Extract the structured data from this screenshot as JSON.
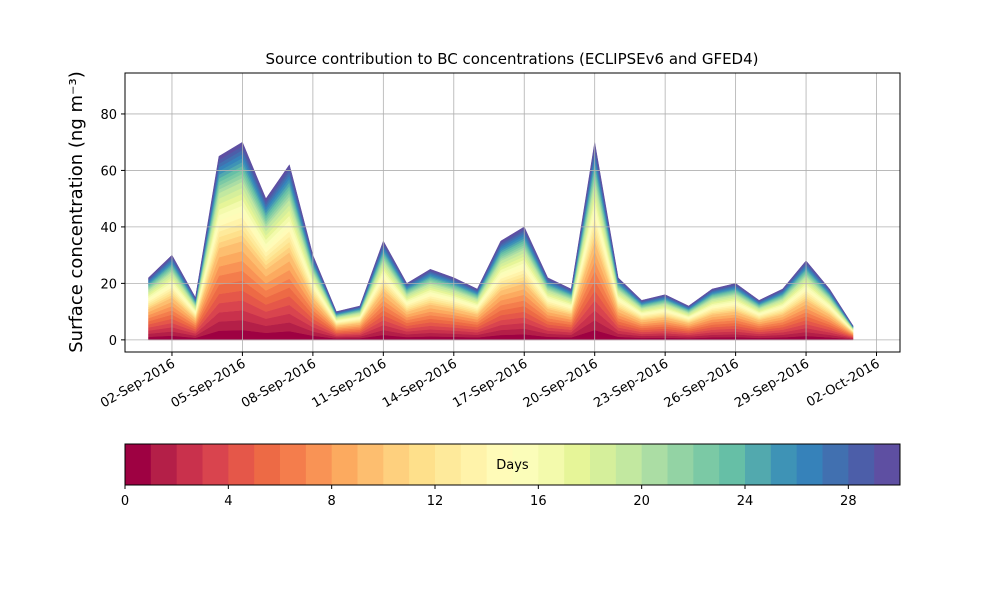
{
  "chart_data": {
    "type": "stackarea",
    "title": "Source contribution to BC concentrations (ECLIPSEv6 and GFED4)",
    "ylabel": "Surface concentration (ng m⁻³)",
    "x": [
      "2016-09-01",
      "2016-09-02",
      "2016-09-03",
      "2016-09-04",
      "2016-09-05",
      "2016-09-06",
      "2016-09-07",
      "2016-09-08",
      "2016-09-09",
      "2016-09-10",
      "2016-09-11",
      "2016-09-12",
      "2016-09-13",
      "2016-09-14",
      "2016-09-15",
      "2016-09-16",
      "2016-09-17",
      "2016-09-18",
      "2016-09-19",
      "2016-09-20",
      "2016-09-21",
      "2016-09-22",
      "2016-09-23",
      "2016-09-24",
      "2016-09-25",
      "2016-09-26",
      "2016-09-27",
      "2016-09-28",
      "2016-09-29",
      "2016-09-30",
      "2016-10-01"
    ],
    "xlim": [
      "2016-08-31",
      "2016-10-03"
    ],
    "xticks": [
      {
        "value": "2016-09-02",
        "label": "02-Sep-2016"
      },
      {
        "value": "2016-09-05",
        "label": "05-Sep-2016"
      },
      {
        "value": "2016-09-08",
        "label": "08-Sep-2016"
      },
      {
        "value": "2016-09-11",
        "label": "11-Sep-2016"
      },
      {
        "value": "2016-09-14",
        "label": "14-Sep-2016"
      },
      {
        "value": "2016-09-17",
        "label": "17-Sep-2016"
      },
      {
        "value": "2016-09-20",
        "label": "20-Sep-2016"
      },
      {
        "value": "2016-09-23",
        "label": "23-Sep-2016"
      },
      {
        "value": "2016-09-26",
        "label": "26-Sep-2016"
      },
      {
        "value": "2016-09-29",
        "label": "29-Sep-2016"
      },
      {
        "value": "2016-10-02",
        "label": "02-Oct-2016"
      }
    ],
    "ylim": [
      -4.3,
      94.5
    ],
    "yticks": [
      0,
      20,
      40,
      60,
      80
    ],
    "grid": true,
    "series": [
      {
        "color": "#9e0142",
        "values": [
          1.1,
          1.5,
          0.75,
          3.25,
          3.5,
          2.5,
          3.1,
          1.5,
          0.5,
          0.6,
          1.75,
          1,
          1.25,
          1.1,
          0.9,
          1.75,
          2,
          1.1,
          0.9,
          3.5,
          1.1,
          0.7,
          0.8,
          0.6,
          0.9,
          1,
          0.7,
          0.9,
          1.4,
          0.9,
          0.25
        ]
      },
      {
        "color": "#b41f48",
        "values": [
          1.1,
          1.5,
          0.75,
          3.25,
          3.5,
          2.5,
          3.1,
          1.5,
          0.5,
          0.6,
          1.75,
          1,
          1.25,
          1.1,
          0.9,
          1.75,
          2,
          1.1,
          0.9,
          3.5,
          1.1,
          0.7,
          0.8,
          0.6,
          0.9,
          1,
          0.7,
          0.9,
          1.4,
          0.9,
          0.25
        ]
      },
      {
        "color": "#c9314c",
        "values": [
          1.1,
          1.5,
          0.75,
          3.25,
          3.5,
          2.5,
          3.1,
          1.5,
          0.5,
          0.6,
          1.75,
          1,
          1.25,
          1.1,
          0.9,
          1.75,
          2,
          1.1,
          0.9,
          3.5,
          1.1,
          0.7,
          0.8,
          0.6,
          0.9,
          1,
          0.7,
          0.9,
          1.4,
          0.9,
          0.25
        ]
      },
      {
        "color": "#d9444e",
        "values": [
          1.1,
          1.5,
          0.75,
          3.25,
          3.5,
          2.5,
          3.1,
          1.5,
          0.5,
          0.6,
          1.75,
          1,
          1.25,
          1.1,
          0.9,
          1.75,
          2,
          1.1,
          0.9,
          3.5,
          1.1,
          0.7,
          0.8,
          0.6,
          0.9,
          1,
          0.7,
          0.9,
          1.4,
          0.9,
          0.25
        ]
      },
      {
        "color": "#e55749",
        "values": [
          1.1,
          1.5,
          0.75,
          3.25,
          3.5,
          2.5,
          3.1,
          1.5,
          0.5,
          0.6,
          1.75,
          1,
          1.25,
          1.1,
          0.9,
          1.75,
          2,
          1.1,
          0.9,
          3.5,
          1.1,
          0.7,
          0.8,
          0.6,
          0.9,
          1,
          0.7,
          0.9,
          1.4,
          0.9,
          0.25
        ]
      },
      {
        "color": "#ed6a45",
        "values": [
          1.1,
          1.5,
          0.75,
          3.25,
          3.5,
          2.5,
          3.1,
          1.5,
          0.5,
          0.6,
          1.75,
          1,
          1.25,
          1.1,
          0.9,
          1.75,
          2,
          1.1,
          0.9,
          3.5,
          1.1,
          0.7,
          0.8,
          0.6,
          0.9,
          1,
          0.7,
          0.9,
          1.4,
          0.9,
          0.25
        ]
      },
      {
        "color": "#f47d4c",
        "values": [
          1.1,
          1.5,
          0.75,
          3.25,
          3.5,
          2.5,
          3.1,
          1.5,
          0.5,
          0.6,
          1.75,
          1,
          1.25,
          1.1,
          0.9,
          1.75,
          2,
          1.1,
          0.9,
          3.5,
          1.1,
          0.7,
          0.8,
          0.6,
          0.9,
          1,
          0.7,
          0.9,
          1.4,
          0.9,
          0.25
        ]
      },
      {
        "color": "#f99355",
        "values": [
          1.1,
          1.5,
          0.75,
          3.25,
          3.5,
          2.5,
          3.1,
          1.5,
          0.5,
          0.6,
          1.75,
          1,
          1.25,
          1.1,
          0.9,
          1.75,
          2,
          1.1,
          0.9,
          3.5,
          1.1,
          0.7,
          0.8,
          0.6,
          0.9,
          1,
          0.7,
          0.9,
          1.4,
          0.9,
          0.25
        ]
      },
      {
        "color": "#fcaa5f",
        "values": [
          1.1,
          1.5,
          0.75,
          3.25,
          3.5,
          2.5,
          3.1,
          1.5,
          0.5,
          0.6,
          1.75,
          1,
          1.25,
          1.1,
          0.9,
          1.75,
          2,
          1.1,
          0.9,
          3.5,
          1.1,
          0.7,
          0.8,
          0.6,
          0.9,
          1,
          0.7,
          0.9,
          1.4,
          0.9,
          0.25
        ]
      },
      {
        "color": "#fdbe6f",
        "values": [
          1.1,
          1.5,
          0.75,
          3.25,
          3.5,
          2.5,
          3.1,
          1.5,
          0.5,
          0.6,
          1.75,
          1,
          1.25,
          1.1,
          0.9,
          1.75,
          2,
          1.1,
          0.9,
          3.5,
          1.1,
          0.7,
          0.8,
          0.6,
          0.9,
          1,
          0.7,
          0.9,
          1.4,
          0.9,
          0.25
        ]
      },
      {
        "color": "#fed07e",
        "values": [
          0.66,
          0.9,
          0.45,
          1.95,
          2.1,
          1.5,
          1.86,
          0.9,
          0.3,
          0.36,
          1.05,
          0.6,
          0.75,
          0.66,
          0.54,
          1.05,
          1.2,
          0.66,
          0.54,
          2.1,
          0.66,
          0.42,
          0.48,
          0.36,
          0.54,
          0.6,
          0.42,
          0.54,
          0.84,
          0.54,
          0.15
        ]
      },
      {
        "color": "#fee08b",
        "values": [
          0.66,
          0.9,
          0.45,
          1.95,
          2.1,
          1.5,
          1.86,
          0.9,
          0.3,
          0.36,
          1.05,
          0.6,
          0.75,
          0.66,
          0.54,
          1.05,
          1.2,
          0.66,
          0.54,
          2.1,
          0.66,
          0.42,
          0.48,
          0.36,
          0.54,
          0.6,
          0.42,
          0.54,
          0.84,
          0.54,
          0.15
        ]
      },
      {
        "color": "#feea9b",
        "values": [
          0.66,
          0.9,
          0.45,
          1.95,
          2.1,
          1.5,
          1.86,
          0.9,
          0.3,
          0.36,
          1.05,
          0.6,
          0.75,
          0.66,
          0.54,
          1.05,
          1.2,
          0.66,
          0.54,
          2.1,
          0.66,
          0.42,
          0.48,
          0.36,
          0.54,
          0.6,
          0.42,
          0.54,
          0.84,
          0.54,
          0.15
        ]
      },
      {
        "color": "#fff3aa",
        "values": [
          0.66,
          0.9,
          0.45,
          1.95,
          2.1,
          1.5,
          1.86,
          0.9,
          0.3,
          0.36,
          1.05,
          0.6,
          0.75,
          0.66,
          0.54,
          1.05,
          1.2,
          0.66,
          0.54,
          2.1,
          0.66,
          0.42,
          0.48,
          0.36,
          0.54,
          0.6,
          0.42,
          0.54,
          0.84,
          0.54,
          0.15
        ]
      },
      {
        "color": "#fffbb8",
        "values": [
          0.66,
          0.9,
          0.45,
          1.95,
          2.1,
          1.5,
          1.86,
          0.9,
          0.3,
          0.36,
          1.05,
          0.6,
          0.75,
          0.66,
          0.54,
          1.05,
          1.2,
          0.66,
          0.54,
          2.1,
          0.66,
          0.42,
          0.48,
          0.36,
          0.54,
          0.6,
          0.42,
          0.54,
          0.84,
          0.54,
          0.15
        ]
      },
      {
        "color": "#fbfdb9",
        "values": [
          0.66,
          0.9,
          0.45,
          1.95,
          2.1,
          1.5,
          1.86,
          0.9,
          0.3,
          0.36,
          1.05,
          0.6,
          0.75,
          0.66,
          0.54,
          1.05,
          1.2,
          0.66,
          0.54,
          2.1,
          0.66,
          0.42,
          0.48,
          0.36,
          0.54,
          0.6,
          0.42,
          0.54,
          0.84,
          0.54,
          0.15
        ]
      },
      {
        "color": "#f3faac",
        "values": [
          0.66,
          0.9,
          0.45,
          1.95,
          2.1,
          1.5,
          1.86,
          0.9,
          0.3,
          0.36,
          1.05,
          0.6,
          0.75,
          0.66,
          0.54,
          1.05,
          1.2,
          0.66,
          0.54,
          2.1,
          0.66,
          0.42,
          0.48,
          0.36,
          0.54,
          0.6,
          0.42,
          0.54,
          0.84,
          0.54,
          0.15
        ]
      },
      {
        "color": "#e6f598",
        "values": [
          0.66,
          0.9,
          0.45,
          1.95,
          2.1,
          1.5,
          1.86,
          0.9,
          0.3,
          0.36,
          1.05,
          0.6,
          0.75,
          0.66,
          0.54,
          1.05,
          1.2,
          0.66,
          0.54,
          2.1,
          0.66,
          0.42,
          0.48,
          0.36,
          0.54,
          0.6,
          0.42,
          0.54,
          0.84,
          0.54,
          0.15
        ]
      },
      {
        "color": "#d5ef9b",
        "values": [
          0.66,
          0.9,
          0.45,
          1.95,
          2.1,
          1.5,
          1.86,
          0.9,
          0.3,
          0.36,
          1.05,
          0.6,
          0.75,
          0.66,
          0.54,
          1.05,
          1.2,
          0.66,
          0.54,
          2.1,
          0.66,
          0.42,
          0.48,
          0.36,
          0.54,
          0.6,
          0.42,
          0.54,
          0.84,
          0.54,
          0.15
        ]
      },
      {
        "color": "#c2e8a0",
        "values": [
          0.66,
          0.9,
          0.45,
          1.95,
          2.1,
          1.5,
          1.86,
          0.9,
          0.3,
          0.36,
          1.05,
          0.6,
          0.75,
          0.66,
          0.54,
          1.05,
          1.2,
          0.66,
          0.54,
          2.1,
          0.66,
          0.42,
          0.48,
          0.36,
          0.54,
          0.6,
          0.42,
          0.54,
          0.84,
          0.54,
          0.15
        ]
      },
      {
        "color": "#abdda4",
        "values": [
          0.44,
          0.6,
          0.3,
          1.3,
          1.4,
          1,
          1.24,
          0.6,
          0.2,
          0.24,
          0.7,
          0.4,
          0.5,
          0.44,
          0.36,
          0.7,
          0.8,
          0.44,
          0.36,
          1.4,
          0.44,
          0.28,
          0.32,
          0.24,
          0.36,
          0.4,
          0.28,
          0.36,
          0.56,
          0.36,
          0.1
        ]
      },
      {
        "color": "#93d3a4",
        "values": [
          0.44,
          0.6,
          0.3,
          1.3,
          1.4,
          1,
          1.24,
          0.6,
          0.2,
          0.24,
          0.7,
          0.4,
          0.5,
          0.44,
          0.36,
          0.7,
          0.8,
          0.44,
          0.36,
          1.4,
          0.44,
          0.28,
          0.32,
          0.24,
          0.36,
          0.4,
          0.28,
          0.36,
          0.56,
          0.36,
          0.1
        ]
      },
      {
        "color": "#7bc9a5",
        "values": [
          0.44,
          0.6,
          0.3,
          1.3,
          1.4,
          1,
          1.24,
          0.6,
          0.2,
          0.24,
          0.7,
          0.4,
          0.5,
          0.44,
          0.36,
          0.7,
          0.8,
          0.44,
          0.36,
          1.4,
          0.44,
          0.28,
          0.32,
          0.24,
          0.36,
          0.4,
          0.28,
          0.36,
          0.56,
          0.36,
          0.1
        ]
      },
      {
        "color": "#66bfa6",
        "values": [
          0.44,
          0.6,
          0.3,
          1.3,
          1.4,
          1,
          1.24,
          0.6,
          0.2,
          0.24,
          0.7,
          0.4,
          0.5,
          0.44,
          0.36,
          0.7,
          0.8,
          0.44,
          0.36,
          1.4,
          0.44,
          0.28,
          0.32,
          0.24,
          0.36,
          0.4,
          0.28,
          0.36,
          0.56,
          0.36,
          0.1
        ]
      },
      {
        "color": "#52a9ae",
        "values": [
          0.44,
          0.6,
          0.3,
          1.3,
          1.4,
          1,
          1.24,
          0.6,
          0.2,
          0.24,
          0.7,
          0.4,
          0.5,
          0.44,
          0.36,
          0.7,
          0.8,
          0.44,
          0.36,
          1.4,
          0.44,
          0.28,
          0.32,
          0.24,
          0.36,
          0.4,
          0.28,
          0.36,
          0.56,
          0.36,
          0.1
        ]
      },
      {
        "color": "#3e93b6",
        "values": [
          0.44,
          0.6,
          0.3,
          1.3,
          1.4,
          1,
          1.24,
          0.6,
          0.2,
          0.24,
          0.7,
          0.4,
          0.5,
          0.44,
          0.36,
          0.7,
          0.8,
          0.44,
          0.36,
          1.4,
          0.44,
          0.28,
          0.32,
          0.24,
          0.36,
          0.4,
          0.28,
          0.36,
          0.56,
          0.36,
          0.1
        ]
      },
      {
        "color": "#3682ba",
        "values": [
          0.44,
          0.6,
          0.3,
          1.3,
          1.4,
          1,
          1.24,
          0.6,
          0.2,
          0.24,
          0.7,
          0.4,
          0.5,
          0.44,
          0.36,
          0.7,
          0.8,
          0.44,
          0.36,
          1.4,
          0.44,
          0.28,
          0.32,
          0.24,
          0.36,
          0.4,
          0.28,
          0.36,
          0.56,
          0.36,
          0.1
        ]
      },
      {
        "color": "#4170b0",
        "values": [
          0.44,
          0.6,
          0.3,
          1.3,
          1.4,
          1,
          1.24,
          0.6,
          0.2,
          0.24,
          0.7,
          0.4,
          0.5,
          0.44,
          0.36,
          0.7,
          0.8,
          0.44,
          0.36,
          1.4,
          0.44,
          0.28,
          0.32,
          0.24,
          0.36,
          0.4,
          0.28,
          0.36,
          0.56,
          0.36,
          0.1
        ]
      },
      {
        "color": "#4c5ea9",
        "values": [
          0.44,
          0.6,
          0.3,
          1.3,
          1.4,
          1,
          1.24,
          0.6,
          0.2,
          0.24,
          0.7,
          0.4,
          0.5,
          0.44,
          0.36,
          0.7,
          0.8,
          0.44,
          0.36,
          1.4,
          0.44,
          0.28,
          0.32,
          0.24,
          0.36,
          0.4,
          0.28,
          0.36,
          0.56,
          0.36,
          0.1
        ]
      },
      {
        "color": "#5e4fa2",
        "values": [
          0.44,
          0.6,
          0.3,
          1.3,
          1.4,
          1,
          1.24,
          0.6,
          0.2,
          0.24,
          0.7,
          0.4,
          0.5,
          0.44,
          0.36,
          0.7,
          0.8,
          0.44,
          0.36,
          1.4,
          0.44,
          0.28,
          0.32,
          0.24,
          0.36,
          0.4,
          0.28,
          0.36,
          0.56,
          0.36,
          0.1
        ]
      }
    ],
    "colorbar": {
      "label": "Days",
      "lim": [
        0,
        30
      ],
      "ticks": [
        0,
        4,
        8,
        12,
        16,
        20,
        24,
        28
      ]
    }
  }
}
